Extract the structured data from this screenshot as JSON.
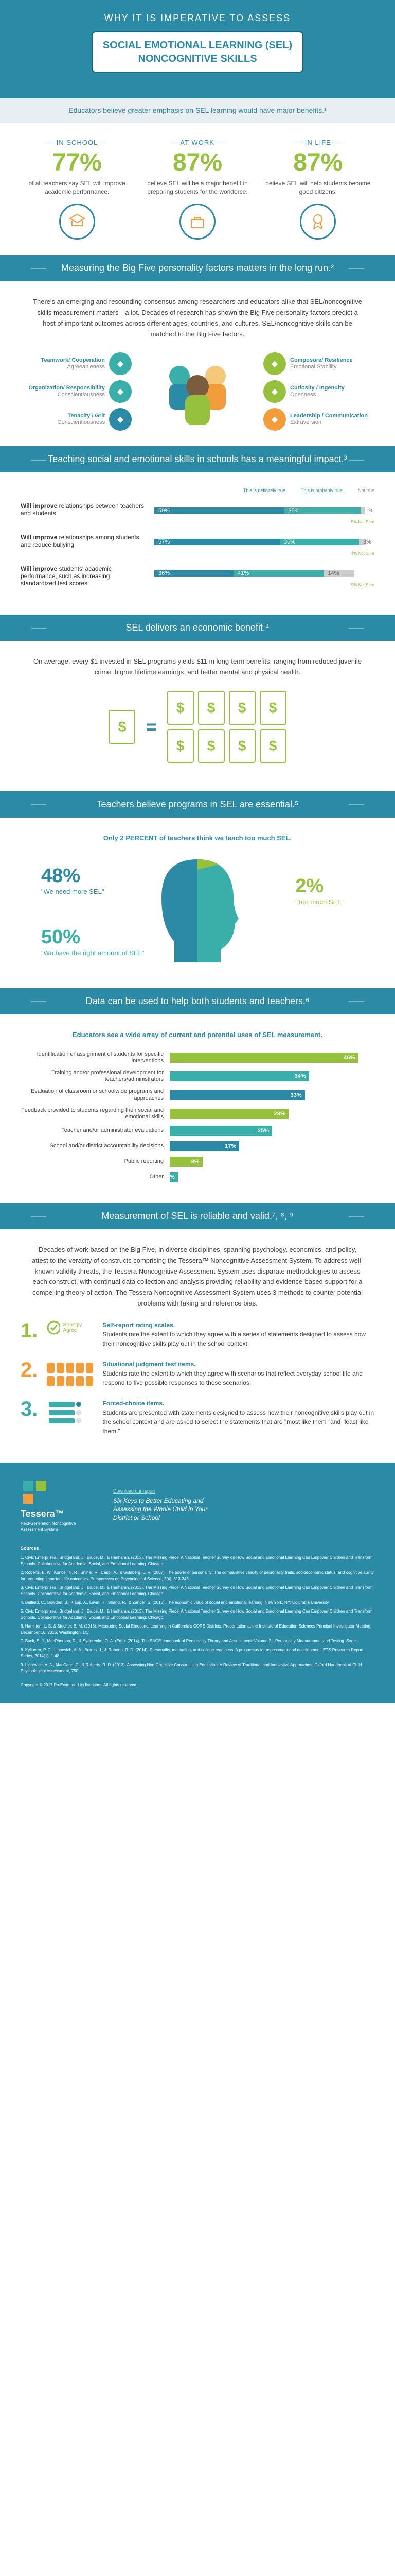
{
  "header": {
    "pretitle": "WHY IT IS IMPERATIVE TO ASSESS",
    "title_line1": "SOCIAL EMOTIONAL LEARNING (SEL)",
    "title_line2": "NONCOGNITIVE SKILLS"
  },
  "palette": {
    "primary": "#2b8aa6",
    "green": "#95c13d",
    "teal": "#3aafa9",
    "orange": "#f39c3a",
    "light_bg": "#e8eef1",
    "grey": "#cccccc"
  },
  "benefits": {
    "blurb": "Educators believe greater emphasis on SEL learning would have major benefits.¹",
    "stats": [
      {
        "context": "— IN SCHOOL —",
        "pct": "77%",
        "desc": "of all teachers say SEL will improve academic performance.",
        "icon": "school-icon"
      },
      {
        "context": "— AT WORK —",
        "pct": "87%",
        "desc": "believe SEL will be a major benefit in preparing students for the workforce.",
        "icon": "toolbox-icon"
      },
      {
        "context": "— IN LIFE —",
        "pct": "87%",
        "desc": "believe SEL will help students become good citizens.",
        "icon": "ribbon-icon"
      }
    ]
  },
  "big5": {
    "heading": "Measuring the Big Five personality factors matters in the long run.²",
    "body": "There's an emerging and resounding consensus among researchers and educators alike that SEL/noncognitive skills measurement matters—a lot. Decades of research has shown the Big Five personality factors predict a host of important outcomes across different ages, countries, and cultures. SEL/noncognitive skills can be matched to the Big Five factors.",
    "factors": [
      {
        "title": "Teamwork/ Cooperation",
        "sub": "Agreeableness",
        "color": "#3aafa9",
        "side": "left"
      },
      {
        "title": "Composure/ Resilience",
        "sub": "Emotional Stability",
        "color": "#95c13d",
        "side": "right"
      },
      {
        "title": "Organization/ Responsibility",
        "sub": "Conscientiousness",
        "color": "#3aafa9",
        "side": "left"
      },
      {
        "title": "Curiosity / Ingenuity",
        "sub": "Openness",
        "color": "#95c13d",
        "side": "right"
      },
      {
        "title": "Tenacity / Grit",
        "sub": "Conscientiousness",
        "color": "#2b8aa6",
        "side": "left"
      },
      {
        "title": "Leadership / Communication",
        "sub": "Extraversion",
        "color": "#f39c3a",
        "side": "right"
      }
    ]
  },
  "impact": {
    "heading": "Teaching social and emotional skills in schools has a meaningful impact.³",
    "legend": [
      "This is definitely true",
      "This is probably true",
      "Not true"
    ],
    "colors": {
      "def": "#2b8aa6",
      "prob": "#3aafa9",
      "not": "#cccccc",
      "notsure": "#95c13d"
    },
    "rows": [
      {
        "label": "Will improve relationships between teachers and students",
        "def": 59,
        "prob": 35,
        "not": 1,
        "notsure": "5% Not Sure"
      },
      {
        "label": "Will improve relationships among students and reduce bullying",
        "def": 57,
        "prob": 36,
        "not": 3,
        "notsure": "4% Not Sure"
      },
      {
        "label": "Will improve students' academic performance, such as increasing standardized test scores",
        "def": 36,
        "prob": 41,
        "not": 14,
        "notsure": "9% Not Sure"
      }
    ]
  },
  "economic": {
    "heading": "SEL delivers an economic benefit.⁴",
    "body": "On average, every $1 invested in SEL programs yields $11 in long-term benefits, ranging from reduced juvenile crime, higher lifetime earnings, and better mental and physical health.",
    "input_bills": 1,
    "output_bills": 8,
    "equals": "="
  },
  "teachers": {
    "heading": "Teachers believe programs in SEL are essential.⁵",
    "top_note": "Only 2 PERCENT of teachers think we teach too much SEL.",
    "callouts": [
      {
        "pct": "48%",
        "label": "\"We need more SEL\"",
        "color": "#2b8aa6"
      },
      {
        "pct": "50%",
        "label": "\"We have the right amount of SEL\"",
        "color": "#3aafa9"
      },
      {
        "pct": "2%",
        "label": "\"Too much SEL\"",
        "color": "#95c13d"
      }
    ]
  },
  "data_uses": {
    "heading": "Data can be used to help both students and teachers.⁶",
    "blurb": "Educators see a wide array of current and potential uses of SEL measurement.",
    "bars": [
      {
        "label": "Identification or assignment of students for specific interventions",
        "pct": 46,
        "color": "#95c13d"
      },
      {
        "label": "Training and/or professional development for teachers/administrators",
        "pct": 34,
        "color": "#3aafa9"
      },
      {
        "label": "Evaluation of classroom or schoolwide programs and approaches",
        "pct": 33,
        "color": "#2b8aa6"
      },
      {
        "label": "Feedback provided to students regarding their social and emotional skills",
        "pct": 29,
        "color": "#95c13d"
      },
      {
        "label": "Teacher and/or administrator evaluations",
        "pct": 25,
        "color": "#3aafa9"
      },
      {
        "label": "School and/or district accountability decisions",
        "pct": 17,
        "color": "#2b8aa6"
      },
      {
        "label": "Public reporting",
        "pct": 8,
        "color": "#95c13d"
      },
      {
        "label": "Other",
        "pct": 2,
        "color": "#3aafa9"
      }
    ]
  },
  "measurement": {
    "heading": "Measurement of SEL is reliable and valid.⁷, ⁸, ⁹",
    "body": "Decades of work based on the Big Five, in diverse disciplines, spanning psychology, economics, and policy, attest to the veracity of constructs comprising the Tessera™ Noncognitive Assessment System. To address well-known validity threats, the Tessera Noncognitive Assessment System uses disparate methodologies to assess each construct, with continual data collection and analysis providing reliability and evidence-based support for a compelling theory of action. The Tessera Noncognitive Assessment System uses 3 methods to counter potential problems with faking and reference bias.",
    "methods": [
      {
        "num": "1.",
        "title": "Self-report rating scales.",
        "desc": "Students rate the extent to which they agree with a series of statements designed to assess how their noncognitive skills play out in the school context.",
        "icon_label": "Strongly Agree",
        "color": "#95c13d"
      },
      {
        "num": "2.",
        "title": "Situational judgment test items.",
        "desc": "Students rate the extent to which they agree with scenarios that reflect everyday school life and respond to five possible responses to these scenarios.",
        "color": "#f39c3a"
      },
      {
        "num": "3.",
        "title": "Forced-choice items.",
        "desc": "Students are presented with statements designed to assess how their noncognitive skills play out in the school context and are asked to select the statements that are \"most like them\" and \"least like them.\"",
        "color": "#3aafa9"
      }
    ]
  },
  "footer": {
    "logo_name": "Tessera™",
    "logo_sub": "Next-Generation Noncognitive Assessment System",
    "download_label": "Download our report",
    "download_title": "Six Keys to Better Educating and Assessing the Whole Child in Your District or School",
    "sources_heading": "Sources",
    "sources": [
      "1. Civic Enterprises., Bridgeland, J., Bruce, M., & Hariharan. (2013). The Missing Piece: A National Teacher Survey on How Social and Emotional Learning Can Empower Children and Transform Schools. Collaborative for Academic, Social, and Emotional Learning. Chicago.",
      "2. Roberts, B. W., Kuncel, N. R., Shiner, R., Caspi, A., & Goldberg, L. R. (2007). The power of personality: The comparative validity of personality traits, socioeconomic status, and cognitive ability for predicting important life outcomes. Perspectives on Psychological Science, 2(4), 313-345.",
      "3. Civic Enterprises., Bridgeland, J., Bruce, M., & Hariharan. (2013). The Missing Piece: A National Teacher Survey on How Social and Emotional Learning Can Empower Children and Transform Schools. Collaborative for Academic, Social, and Emotional Learning. Chicago.",
      "4. Belfield, C., Bowden, B., Klapp, A., Levin, H., Shand, R., & Zander, S. (2015). The economic value of social and emotional learning. New York, NY: Columbia University.",
      "5. Civic Enterprises., Bridgeland, J., Bruce, M., & Hariharan. (2013). The Missing Piece: A National Teacher Survey on How Social and Emotional Learning Can Empower Children and Transform Schools. Collaborative for Academic, Social, and Emotional Learning. Chicago.",
      "6. Hamilton, L. S. & Stecher, B. M. (2016). Measuring Social Emotional Learning in California's CORE Districts. Presentation at the Institute of Education Sciences Principal Investigator Meeting, December 16, 2016, Washington, DC.",
      "7. Buck, S. J., MacPherson, R., & Sydorenko, O. A. (Edt.). (2014). The SAGE handbook of Personality Theory and Assessment: Volume 2—Personality Measurement and Testing. Sage.",
      "8. Kyllonen, P. C., Lipnevich, A. A., Burrus, J., & Roberts, R. D. (2014). Personality, motivation, and college readiness: A prospectus for assessment and development. ETS Research Report Series, 2014(1), 1-48.",
      "9. Lipnevich, A. A., MacCann, C., & Roberts, R. D. (2013). Assessing Non-Cognitive Constructs in Education: A Review of Traditional and Innovative Approaches. Oxford Handbook of Child Psychological Assessment, 750."
    ],
    "copyright": "Copyright © 2017 ProExam and its licensors. All rights reserved."
  }
}
